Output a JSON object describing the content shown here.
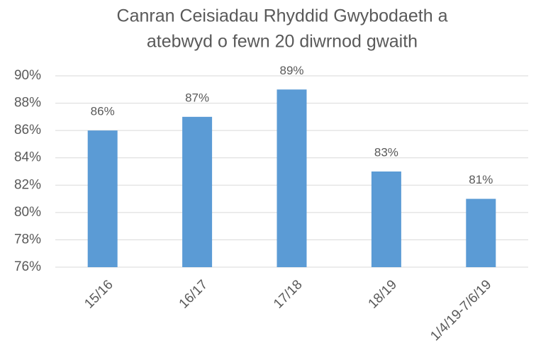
{
  "chart_data": {
    "type": "bar",
    "title": [
      "Canran Ceisiadau Rhyddid Gwybodaeth a",
      "atebwyd o fewn 20 diwrnod gwaith"
    ],
    "categories": [
      "15/16",
      "16/17",
      "17/18",
      "18/19",
      "1/4/19-7/6/19"
    ],
    "values": [
      86,
      87,
      89,
      83,
      81
    ],
    "value_labels": [
      "86%",
      "87%",
      "89%",
      "83%",
      "81%"
    ],
    "color": "#5b9bd5",
    "ylim": [
      76,
      90
    ],
    "yticks": [
      {
        "value": 76,
        "label": "76%"
      },
      {
        "value": 78,
        "label": "78%"
      },
      {
        "value": 80,
        "label": "80%"
      },
      {
        "value": 82,
        "label": "82%"
      },
      {
        "value": 84,
        "label": "84%"
      },
      {
        "value": 86,
        "label": "86%"
      },
      {
        "value": 88,
        "label": "88%"
      },
      {
        "value": 90,
        "label": "90%"
      }
    ],
    "grid": true
  }
}
